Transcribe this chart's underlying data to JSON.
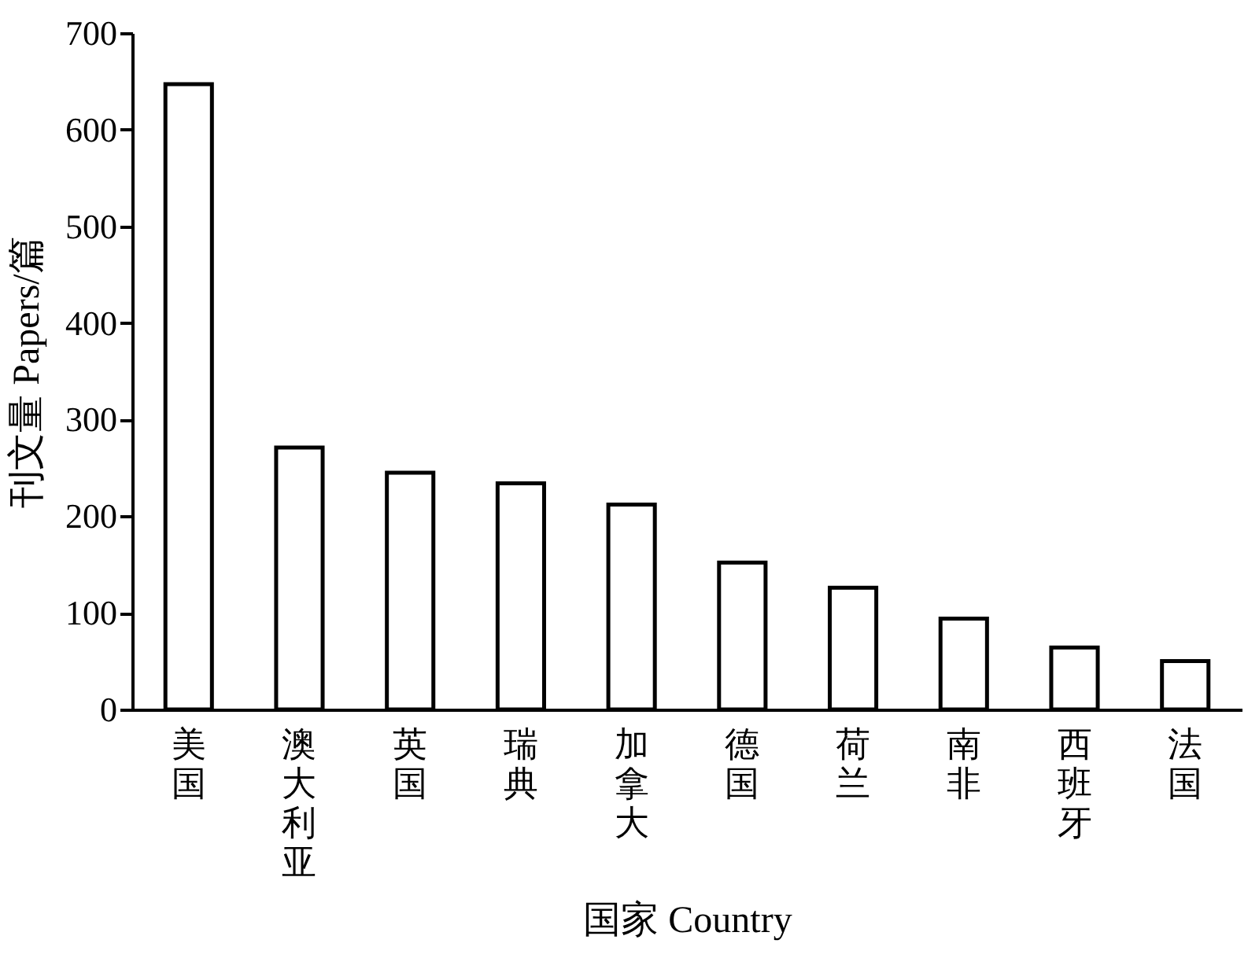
{
  "chart_data": {
    "type": "bar",
    "xlabel": "国家 Country",
    "ylabel": "刊文量 Papers/篇",
    "categories": [
      "美国",
      "澳大利亚",
      "英国",
      "瑞典",
      "加拿大",
      "德国",
      "荷兰",
      "南非",
      "西班牙",
      "法国"
    ],
    "values": [
      647,
      271,
      245,
      234,
      212,
      152,
      126,
      94,
      64,
      50
    ],
    "color": "#ffffff",
    "ylim": [
      0,
      700
    ],
    "yticks": [
      0,
      100,
      200,
      300,
      400,
      500,
      600,
      700
    ],
    "grid": false
  }
}
